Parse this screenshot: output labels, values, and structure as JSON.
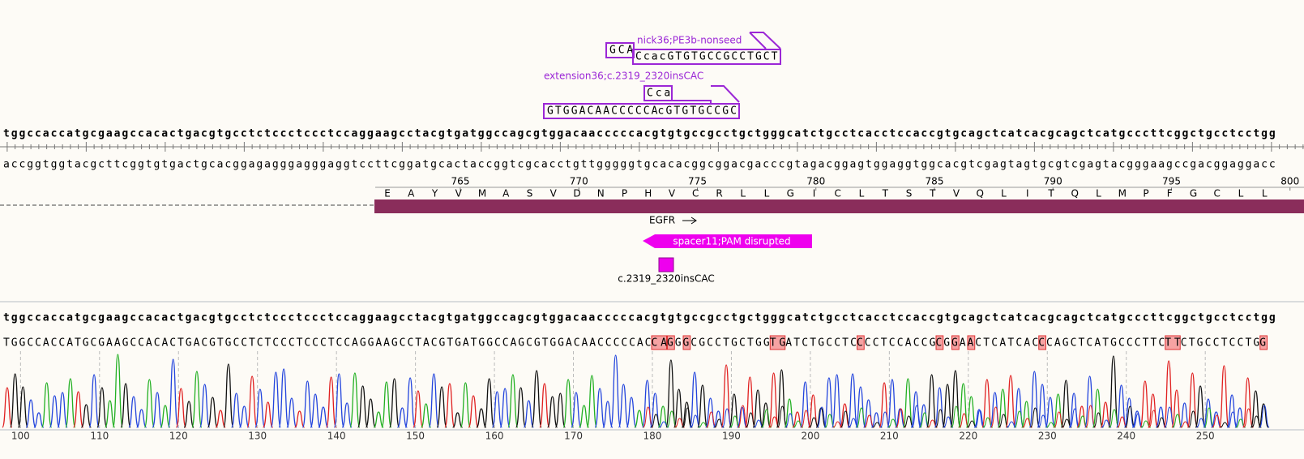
{
  "primers": [
    {
      "name": "nick36;PE3b-nonseed",
      "overhang": "GCA",
      "sequence": "CcacGTGTGCCGCCTGCT"
    },
    {
      "name": "extension36;c.2319_2320insCAC",
      "overhang": "Cca",
      "sequence_parts": [
        "GTGGACAACCCCCA",
        "cGTGTGCCGC"
      ]
    }
  ],
  "sequence": {
    "top": "tggccaccatgcgaagccacactgacgtgcctctccctccctccaggaagcctacgtgatggccagcgtggacaacccccacgtgtgccgcctgctgggcatctgcctcacctccaccgtgcagctcatcacgcagctcatgcccttcggctgcctcctgg",
    "bottom": "accggtggtacgcttcggtgtgactgcacggagagggagggaggtccttcggatgcactaccggtcgcacctgttgggggtgcacacggcggacgacccgtagacggagtggaggtggcacgtcgagtagtgcgtcgagtacgggaagccgacggaggacc"
  },
  "translation": {
    "residue_numbers": [
      765,
      770,
      775,
      780,
      785,
      790,
      795,
      800
    ],
    "amino_acids": [
      "E",
      "A",
      "Y",
      "V",
      "M",
      "A",
      "S",
      "V",
      "D",
      "N",
      "P",
      "H",
      "V",
      "C",
      "R",
      "L",
      "L",
      "G",
      "I",
      "C",
      "L",
      "T",
      "S",
      "T",
      "V",
      "Q",
      "L",
      "I",
      "T",
      "Q",
      "L",
      "M",
      "P",
      "F",
      "G",
      "C",
      "L",
      "L"
    ]
  },
  "features": {
    "gene": "EGFR",
    "spacer": "spacer11;PAM disrupted",
    "insertion": "c.2319_2320insCAC"
  },
  "trace": {
    "reference": "tggccaccatgcgaagccacactgacgtgcctctccctccctccaggaagcctacgtgatggccagcgtggacaacccccacgtgtgccgcctgctgggcatctgcctcacctccaccgtgcagctcatcacgcagctcatgcccttcggctgcctcctgg",
    "called_segments": [
      {
        "text": "TGGCCACCATGCGAAGCCACACTGACGTGCCTCTCCCTCCCTCCAGGAAGCCTACGTGATGGCCAGCGTGGACAACCCCCAC",
        "mismatch": false
      },
      {
        "text": "CA",
        "mismatch": true
      },
      {
        "text": "G",
        "mismatch": true
      },
      {
        "text": "G",
        "mismatch": false
      },
      {
        "text": "G",
        "mismatch": true
      },
      {
        "text": "CGCCTGCTGG",
        "mismatch": false
      },
      {
        "text": "TG",
        "mismatch": true
      },
      {
        "text": "ATCTGCCTC",
        "mismatch": false
      },
      {
        "text": "C",
        "mismatch": true
      },
      {
        "text": "CCTCCACCG",
        "mismatch": false
      },
      {
        "text": "C",
        "mismatch": true
      },
      {
        "text": "G",
        "mismatch": false
      },
      {
        "text": "G",
        "mismatch": true
      },
      {
        "text": "A",
        "mismatch": false
      },
      {
        "text": "A",
        "mismatch": true
      },
      {
        "text": "CTCATCAC",
        "mismatch": false
      },
      {
        "text": "C",
        "mismatch": true
      },
      {
        "text": "CAGCTCATGCCCTTC",
        "mismatch": false
      },
      {
        "text": "TT",
        "mismatch": true
      },
      {
        "text": "CTGCCTCCTG",
        "mismatch": false
      },
      {
        "text": "G",
        "mismatch": true
      }
    ],
    "xlim": [
      97.4,
      262.5
    ],
    "xticks": [
      100,
      110,
      120,
      130,
      140,
      150,
      160,
      170,
      180,
      190,
      200,
      210,
      220,
      230,
      240,
      250
    ]
  }
}
